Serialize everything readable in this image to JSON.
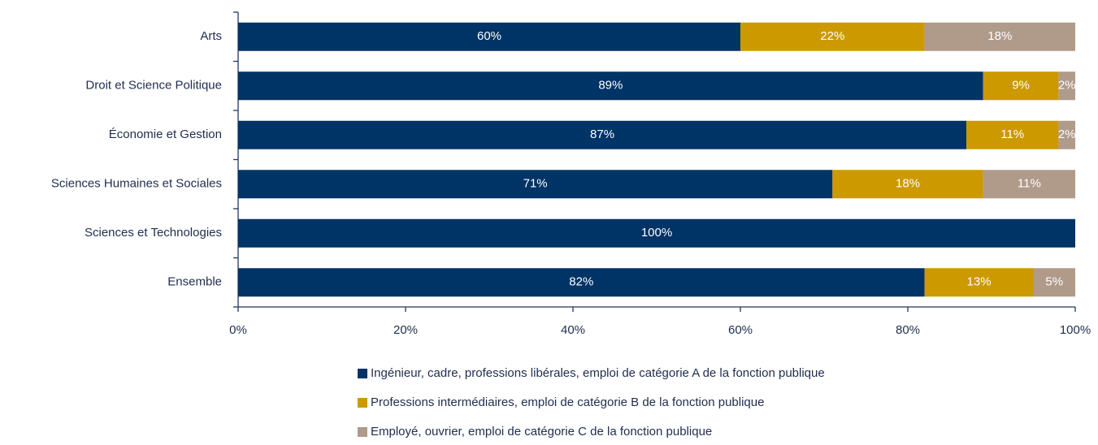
{
  "chart_data": {
    "type": "stacked-barh",
    "categories": [
      "Arts",
      "Droit et Science Politique",
      "Économie et Gestion",
      "Sciences Humaines et Sociales",
      "Sciences et Technologies",
      "Ensemble"
    ],
    "series": [
      {
        "name": "Ingénieur, cadre, professions libérales, emploi de catégorie A de la fonction publique",
        "color": "#003366",
        "values": [
          60,
          89,
          87,
          71,
          100,
          82
        ],
        "value_labels": [
          "60%",
          "89%",
          "87%",
          "71%",
          "100%",
          "82%"
        ]
      },
      {
        "name": "Professions intermédiaires, emploi de catégorie B de la fonction publique",
        "color": "#CC9900",
        "values": [
          22,
          9,
          11,
          18,
          0,
          13
        ],
        "value_labels": [
          "22%",
          "9%",
          "11%",
          "18%",
          null,
          "13%"
        ]
      },
      {
        "name": "Employé, ouvrier, emploi de catégorie C de la fonction publique",
        "color": "#B09A8A",
        "values": [
          18,
          2,
          2,
          11,
          0,
          5
        ],
        "value_labels": [
          "18%",
          "2%",
          "2%",
          "11%",
          null,
          "5%"
        ]
      }
    ],
    "xlim": [
      0,
      100
    ],
    "xticks": [
      {
        "value": 0,
        "label": "0%"
      },
      {
        "value": 20,
        "label": "20%"
      },
      {
        "value": 40,
        "label": "40%"
      },
      {
        "value": 60,
        "label": "60%"
      },
      {
        "value": 80,
        "label": "80%"
      },
      {
        "value": 100,
        "label": "100%"
      }
    ],
    "legend": "bottom"
  }
}
